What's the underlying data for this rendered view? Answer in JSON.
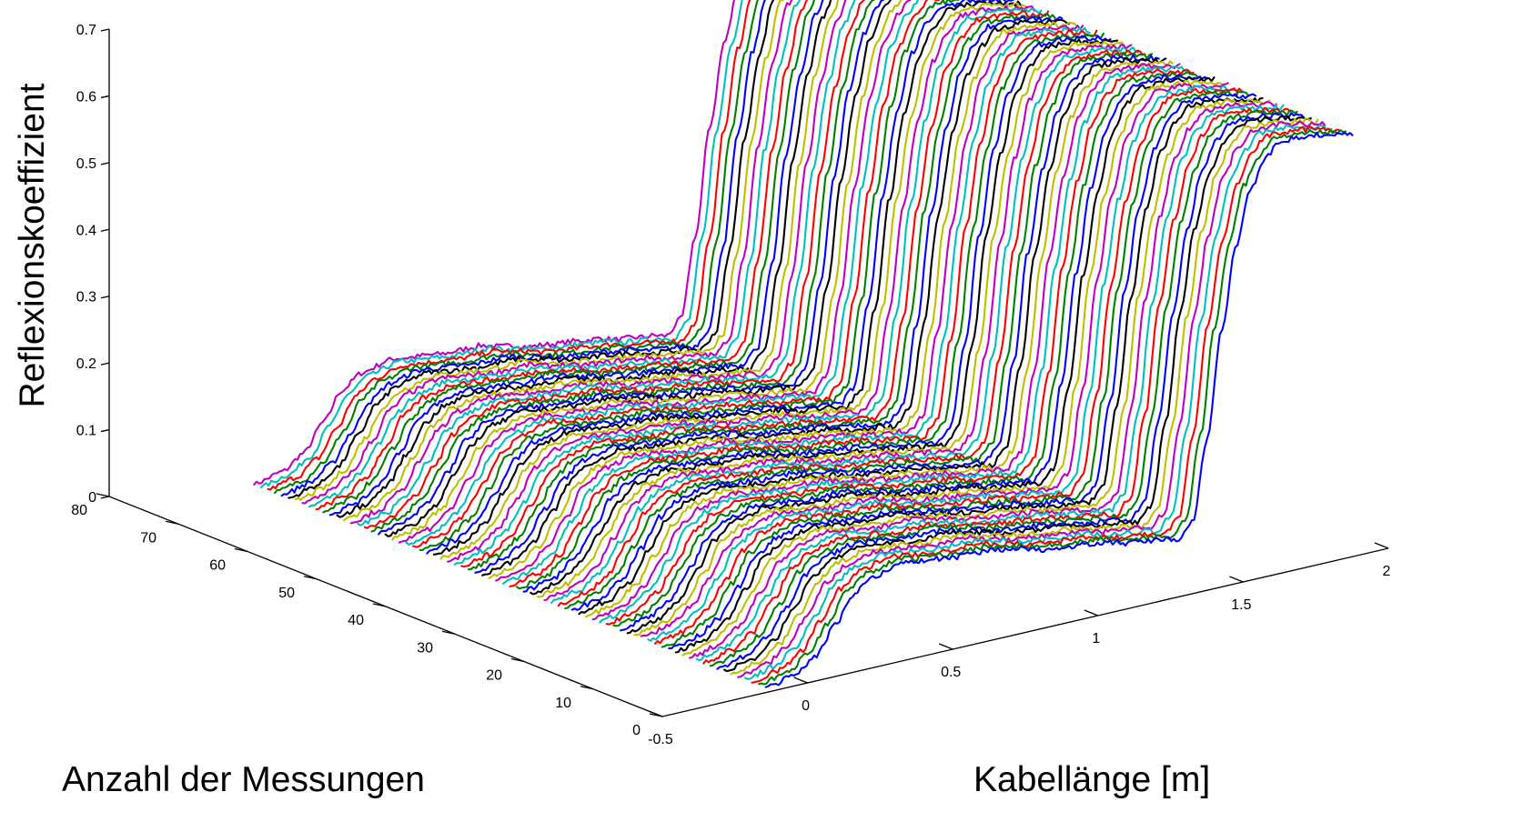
{
  "chart_data": {
    "type": "line",
    "subtype": "3d-waterfall",
    "title": "",
    "xlabel": "Kabellänge [m]",
    "ylabel": "Anzahl der Messungen",
    "zlabel": "Reflexionskoeffizient",
    "xlim": [
      -0.5,
      2
    ],
    "ylim": [
      0,
      80
    ],
    "zlim": [
      0,
      0.7
    ],
    "xticks": [
      "-0.5",
      "0",
      "0.5",
      "1",
      "1.5",
      "2"
    ],
    "yticks": [
      "0",
      "10",
      "20",
      "30",
      "40",
      "50",
      "60",
      "70",
      "80"
    ],
    "zticks": [
      "0",
      "0.1",
      "0.2",
      "0.3",
      "0.4",
      "0.5",
      "0.6",
      "0.7"
    ],
    "grid": false,
    "series_count": 75,
    "series_colors": [
      "#0000ff",
      "#008000",
      "#ff0000",
      "#00bfbf",
      "#bf00bf",
      "#bfbf00",
      "#000000"
    ],
    "profile": {
      "x": [
        -0.12,
        -0.02,
        0.05,
        0.12,
        0.18,
        0.25,
        0.35,
        0.45,
        0.55,
        0.65,
        0.75,
        0.85,
        0.95,
        1.05,
        1.15,
        1.25,
        1.3,
        1.35,
        1.4,
        1.45,
        1.5,
        1.55,
        1.6,
        1.65,
        1.7,
        1.75,
        1.8,
        1.85,
        1.9
      ],
      "reflection": [
        0.0,
        0.01,
        0.03,
        0.07,
        0.11,
        0.13,
        0.14,
        0.135,
        0.13,
        0.13,
        0.12,
        0.11,
        0.105,
        0.1,
        0.09,
        0.085,
        0.08,
        0.1,
        0.22,
        0.38,
        0.5,
        0.58,
        0.62,
        0.64,
        0.64,
        0.64,
        0.635,
        0.63,
        0.625
      ]
    }
  }
}
